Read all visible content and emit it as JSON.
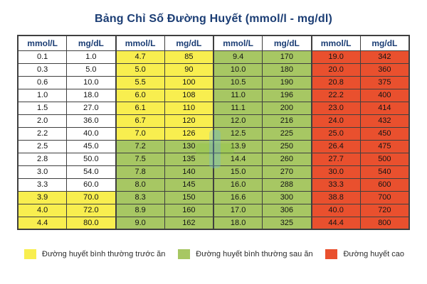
{
  "title": "Bảng Chỉ Số Đường Huyết (mmol/l - mg/dl)",
  "colors": {
    "yellow": "#f8ee4f",
    "green": "#a7c763",
    "red": "#e9502e",
    "header_text": "#1b3d74",
    "border": "#3f3f3f"
  },
  "chart_data": {
    "type": "table",
    "title": "Bảng Chỉ Số Đường Huyết (mmol/l - mg/dl)",
    "column_headers": [
      "mmol/L",
      "mg/dL",
      "mmol/L",
      "mg/dL",
      "mmol/L",
      "mg/dL",
      "mmol/L",
      "mg/dL"
    ],
    "groups": [
      {
        "rows": [
          [
            "0.1",
            "1.0",
            "white"
          ],
          [
            "0.3",
            "5.0",
            "white"
          ],
          [
            "0.6",
            "10.0",
            "white"
          ],
          [
            "1.0",
            "18.0",
            "white"
          ],
          [
            "1.5",
            "27.0",
            "white"
          ],
          [
            "2.0",
            "36.0",
            "white"
          ],
          [
            "2.2",
            "40.0",
            "white"
          ],
          [
            "2.5",
            "45.0",
            "white"
          ],
          [
            "2.8",
            "50.0",
            "white"
          ],
          [
            "3.0",
            "54.0",
            "white"
          ],
          [
            "3.3",
            "60.0",
            "white"
          ],
          [
            "3.9",
            "70.0",
            "yellow"
          ],
          [
            "4.0",
            "72.0",
            "yellow"
          ],
          [
            "4.4",
            "80.0",
            "yellow"
          ]
        ]
      },
      {
        "rows": [
          [
            "4.7",
            "85",
            "yellow"
          ],
          [
            "5.0",
            "90",
            "yellow"
          ],
          [
            "5.5",
            "100",
            "yellow"
          ],
          [
            "6.0",
            "108",
            "yellow"
          ],
          [
            "6.1",
            "110",
            "yellow"
          ],
          [
            "6.7",
            "120",
            "yellow"
          ],
          [
            "7.0",
            "126",
            "yellow"
          ],
          [
            "7.2",
            "130",
            "green"
          ],
          [
            "7.5",
            "135",
            "green"
          ],
          [
            "7.8",
            "140",
            "green"
          ],
          [
            "8.0",
            "145",
            "green"
          ],
          [
            "8.3",
            "150",
            "green"
          ],
          [
            "8.9",
            "160",
            "green"
          ],
          [
            "9.0",
            "162",
            "green"
          ]
        ]
      },
      {
        "rows": [
          [
            "9.4",
            "170",
            "green"
          ],
          [
            "10.0",
            "180",
            "green"
          ],
          [
            "10.5",
            "190",
            "green"
          ],
          [
            "11.0",
            "196",
            "green"
          ],
          [
            "11.1",
            "200",
            "green"
          ],
          [
            "12.0",
            "216",
            "green"
          ],
          [
            "12.5",
            "225",
            "green"
          ],
          [
            "13.9",
            "250",
            "green"
          ],
          [
            "14.4",
            "260",
            "green"
          ],
          [
            "15.0",
            "270",
            "green"
          ],
          [
            "16.0",
            "288",
            "green"
          ],
          [
            "16.6",
            "300",
            "green"
          ],
          [
            "17.0",
            "306",
            "green"
          ],
          [
            "18.0",
            "325",
            "green"
          ]
        ]
      },
      {
        "rows": [
          [
            "19.0",
            "342",
            "red"
          ],
          [
            "20.0",
            "360",
            "red"
          ],
          [
            "20.8",
            "375",
            "red"
          ],
          [
            "22.2",
            "400",
            "red"
          ],
          [
            "23.0",
            "414",
            "red"
          ],
          [
            "24.0",
            "432",
            "red"
          ],
          [
            "25.0",
            "450",
            "red"
          ],
          [
            "26.4",
            "475",
            "red"
          ],
          [
            "27.7",
            "500",
            "red"
          ],
          [
            "30.0",
            "540",
            "red"
          ],
          [
            "33.3",
            "600",
            "red"
          ],
          [
            "38.8",
            "700",
            "red"
          ],
          [
            "40.0",
            "720",
            "red"
          ],
          [
            "44.4",
            "800",
            "red"
          ]
        ]
      }
    ],
    "legend": [
      {
        "color": "#f8ee4f",
        "color_key": "yellow",
        "label": "Đường huyết bình thường trước ăn"
      },
      {
        "color": "#a7c763",
        "color_key": "green",
        "label": "Đường huyết bình thường sau ăn"
      },
      {
        "color": "#e9502e",
        "color_key": "red",
        "label": "Đường huyết cao"
      }
    ]
  }
}
